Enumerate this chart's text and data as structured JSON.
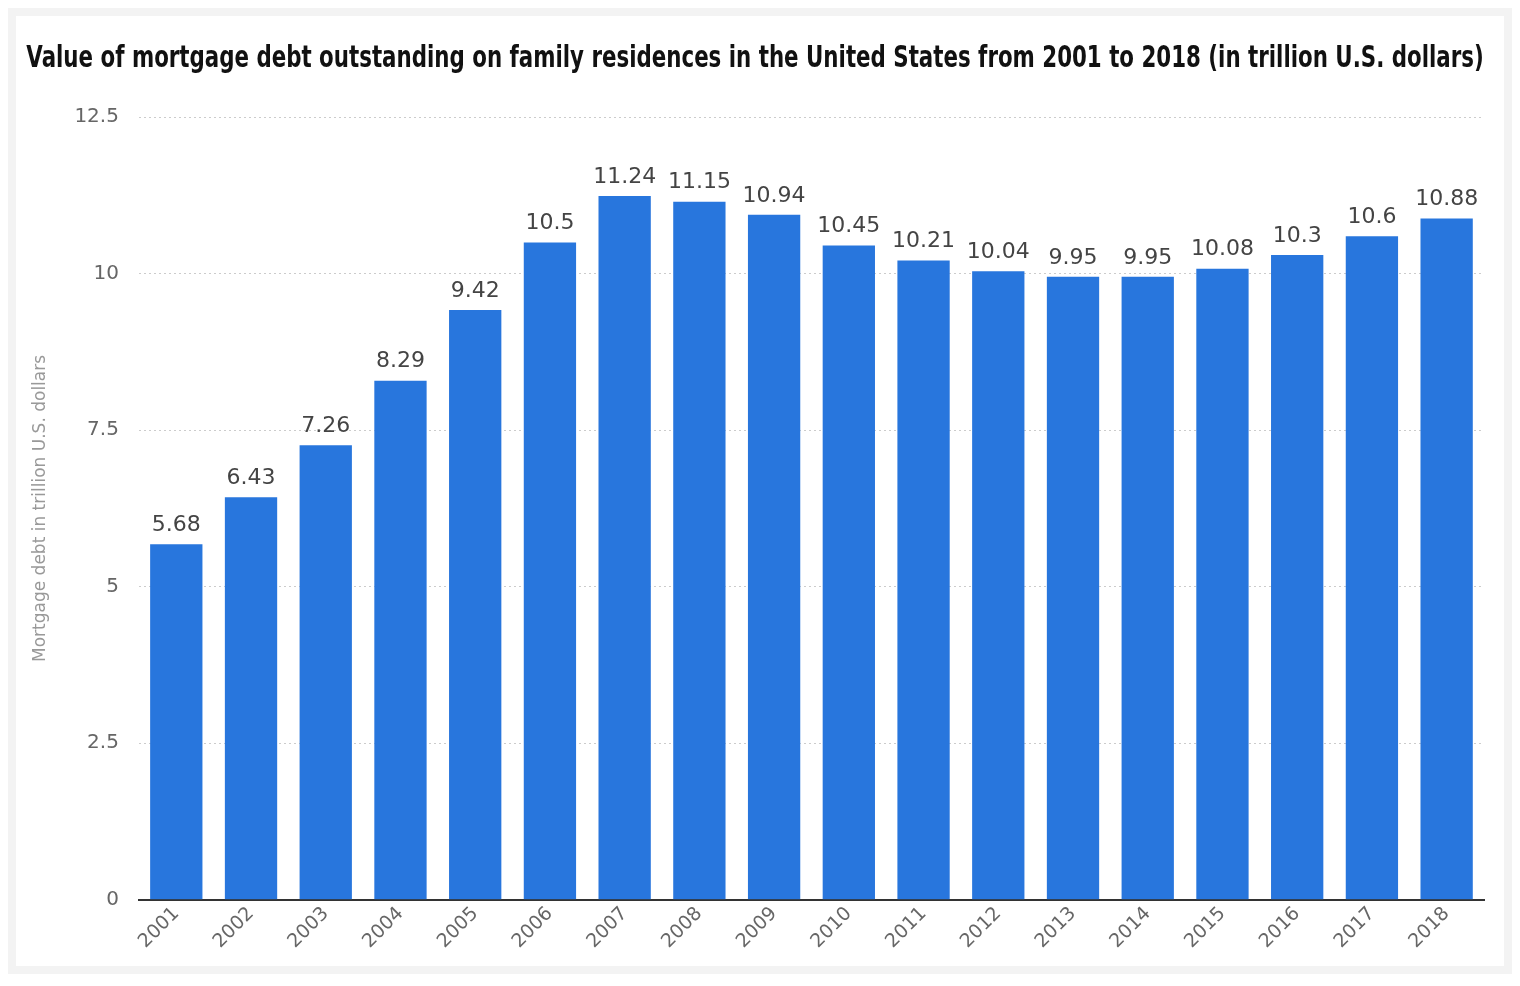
{
  "chart_data": {
    "type": "bar",
    "title": "Value of mortgage debt outstanding on family residences in the United States from 2001 to 2018 (in trillion U.S. dollars)",
    "ylabel": "Mortgage debt in trillion U.S. dollars",
    "categories": [
      "2001",
      "2002",
      "2003",
      "2004",
      "2005",
      "2006",
      "2007",
      "2008",
      "2009",
      "2010",
      "2011",
      "2012",
      "2013",
      "2014",
      "2015",
      "2016",
      "2017",
      "2018"
    ],
    "values": [
      5.68,
      6.43,
      7.26,
      8.29,
      9.42,
      10.5,
      11.24,
      11.15,
      10.94,
      10.45,
      10.21,
      10.04,
      9.95,
      9.95,
      10.08,
      10.3,
      10.6,
      10.88
    ],
    "color": "#2876dd",
    "ylim": [
      0,
      12.5
    ],
    "yticks": [
      0,
      2.5,
      5,
      7.5,
      10,
      12.5
    ],
    "grid": "y",
    "data_labels": true,
    "legend": false
  }
}
